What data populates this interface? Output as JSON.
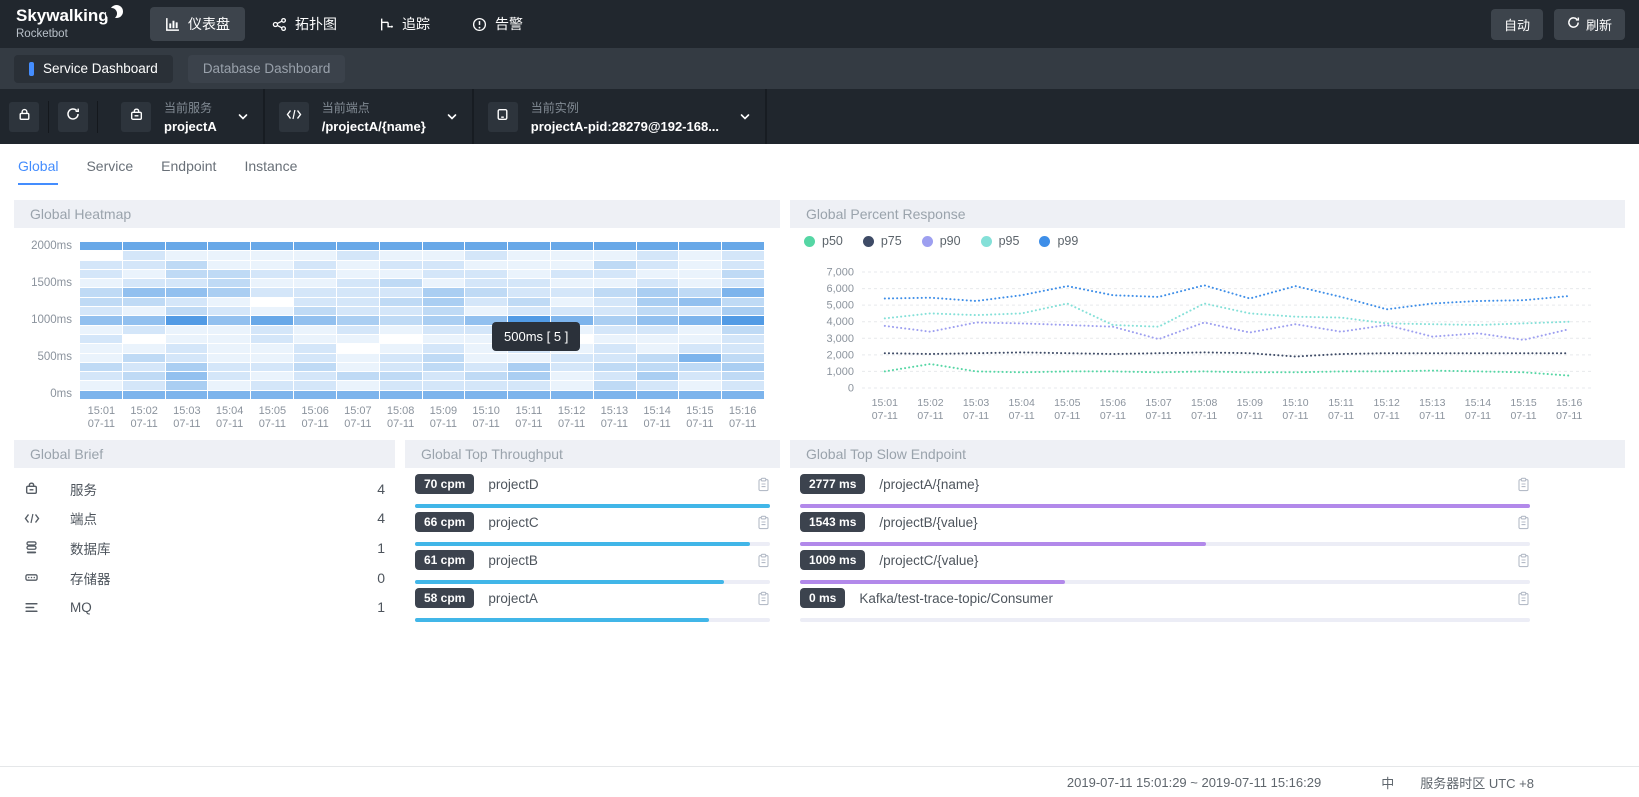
{
  "brand": {
    "name": "Skywalking",
    "subtitle": "Rocketbot"
  },
  "navbar": {
    "items": [
      {
        "label": "仪表盘",
        "icon": "dashboard-icon",
        "active": true
      },
      {
        "label": "拓扑图",
        "icon": "topology-icon",
        "active": false
      },
      {
        "label": "追踪",
        "icon": "trace-icon",
        "active": false
      },
      {
        "label": "告警",
        "icon": "alarm-icon",
        "active": false
      }
    ],
    "auto_label": "自动",
    "refresh_label": "刷新"
  },
  "dashboard_tabs": [
    {
      "label": "Service Dashboard",
      "active": true
    },
    {
      "label": "Database Dashboard",
      "active": false
    }
  ],
  "selectors": {
    "service": {
      "label": "当前服务",
      "value": "projectA"
    },
    "endpoint": {
      "label": "当前端点",
      "value": "/projectA/{name}"
    },
    "instance": {
      "label": "当前实例",
      "value": "projectA-pid:28279@192-168..."
    }
  },
  "page_tabs": [
    {
      "label": "Global",
      "active": true
    },
    {
      "label": "Service",
      "active": false
    },
    {
      "label": "Endpoint",
      "active": false
    },
    {
      "label": "Instance",
      "active": false
    }
  ],
  "panels": {
    "heatmap": {
      "title": "Global Heatmap",
      "tooltip": "500ms [ 5 ]"
    },
    "percent": {
      "title": "Global Percent Response",
      "legend": [
        {
          "label": "p50",
          "color": "#55d6a4"
        },
        {
          "label": "p75",
          "color": "#3e4b66"
        },
        {
          "label": "p90",
          "color": "#9d9ff0"
        },
        {
          "label": "p95",
          "color": "#84e0d8"
        },
        {
          "label": "p99",
          "color": "#3e8ee8"
        }
      ]
    },
    "brief": {
      "title": "Global Brief",
      "items": [
        {
          "icon": "service-icon",
          "label": "服务",
          "value": "4"
        },
        {
          "icon": "endpoint-icon",
          "label": "端点",
          "value": "4"
        },
        {
          "icon": "database-icon",
          "label": "数据库",
          "value": "1"
        },
        {
          "icon": "storage-icon",
          "label": "存储器",
          "value": "0"
        },
        {
          "icon": "mq-icon",
          "label": "MQ",
          "value": "1"
        }
      ]
    },
    "throughput": {
      "title": "Global Top Throughput",
      "unit": "cpm",
      "bar_color": "#41b6e8",
      "items": [
        {
          "value": 70,
          "label": "projectD"
        },
        {
          "value": 66,
          "label": "projectC"
        },
        {
          "value": 61,
          "label": "projectB"
        },
        {
          "value": 58,
          "label": "projectA"
        }
      ]
    },
    "slow": {
      "title": "Global Top Slow Endpoint",
      "unit": "ms",
      "bar_color": "#b289ea",
      "items": [
        {
          "value": 2777,
          "label": "/projectA/{name}"
        },
        {
          "value": 1543,
          "label": "/projectB/{value}"
        },
        {
          "value": 1009,
          "label": "/projectC/{value}"
        },
        {
          "value": 0,
          "label": "Kafka/test-trace-topic/Consumer"
        }
      ]
    }
  },
  "chart_data": [
    {
      "id": "global_heatmap",
      "type": "heatmap",
      "title": "Global Heatmap",
      "x": [
        "15:01",
        "15:02",
        "15:03",
        "15:04",
        "15:05",
        "15:06",
        "15:07",
        "15:08",
        "15:09",
        "15:10",
        "15:11",
        "15:12",
        "15:13",
        "15:14",
        "15:15",
        "15:16"
      ],
      "x_date": "07-11",
      "y_labels": [
        "2000ms",
        "1500ms",
        "1000ms",
        "500ms",
        "0ms"
      ],
      "base_color": "#3d8fe2",
      "intensity_scale": "0 (white) .. 9 (saturated blue)",
      "matrix": [
        [
          7,
          7,
          7,
          7,
          7,
          7,
          7,
          7,
          7,
          7,
          7,
          7,
          7,
          7,
          7,
          7
        ],
        [
          0,
          2,
          1,
          1,
          1,
          1,
          2,
          1,
          1,
          2,
          1,
          1,
          1,
          2,
          1,
          2
        ],
        [
          2,
          2,
          3,
          1,
          1,
          2,
          1,
          2,
          2,
          1,
          1,
          1,
          3,
          2,
          1,
          2
        ],
        [
          2,
          1,
          3,
          3,
          2,
          2,
          1,
          1,
          2,
          2,
          1,
          2,
          2,
          1,
          1,
          3
        ],
        [
          1,
          2,
          2,
          3,
          1,
          1,
          2,
          3,
          1,
          2,
          2,
          1,
          1,
          2,
          1,
          2
        ],
        [
          3,
          5,
          5,
          4,
          2,
          2,
          2,
          2,
          4,
          3,
          2,
          2,
          3,
          4,
          3,
          6
        ],
        [
          3,
          3,
          2,
          1,
          0,
          2,
          2,
          3,
          4,
          2,
          3,
          1,
          2,
          4,
          5,
          3
        ],
        [
          2,
          1,
          3,
          2,
          1,
          3,
          2,
          2,
          3,
          1,
          2,
          2,
          2,
          3,
          2,
          4
        ],
        [
          5,
          5,
          8,
          5,
          7,
          5,
          4,
          3,
          4,
          5,
          8,
          6,
          4,
          5,
          6,
          8
        ],
        [
          1,
          2,
          1,
          1,
          2,
          1,
          2,
          1,
          2,
          2,
          1,
          1,
          2,
          2,
          1,
          3
        ],
        [
          2,
          0,
          1,
          1,
          2,
          1,
          1,
          0,
          1,
          1,
          1,
          0,
          1,
          1,
          1,
          2
        ],
        [
          1,
          1,
          2,
          1,
          1,
          2,
          0,
          1,
          2,
          1,
          2,
          1,
          2,
          1,
          2,
          2
        ],
        [
          1,
          3,
          2,
          1,
          1,
          2,
          1,
          2,
          3,
          1,
          1,
          2,
          2,
          3,
          6,
          3
        ],
        [
          3,
          2,
          4,
          2,
          2,
          3,
          1,
          2,
          3,
          2,
          4,
          2,
          3,
          3,
          3,
          4
        ],
        [
          2,
          3,
          5,
          2,
          1,
          2,
          3,
          3,
          2,
          3,
          4,
          1,
          2,
          4,
          2,
          3
        ],
        [
          1,
          2,
          4,
          1,
          2,
          2,
          1,
          2,
          2,
          2,
          2,
          1,
          3,
          2,
          1,
          2
        ],
        [
          6,
          6,
          6,
          6,
          6,
          6,
          6,
          6,
          6,
          6,
          6,
          6,
          6,
          6,
          6,
          6
        ]
      ],
      "tooltip": "500ms [ 5 ]"
    },
    {
      "id": "percent_response",
      "type": "line",
      "title": "Global Percent Response",
      "style": "dotted",
      "x": [
        "15:01",
        "15:02",
        "15:03",
        "15:04",
        "15:05",
        "15:06",
        "15:07",
        "15:08",
        "15:09",
        "15:10",
        "15:11",
        "15:12",
        "15:13",
        "15:14",
        "15:15",
        "15:16"
      ],
      "x_date": "07-11",
      "ylim": [
        0,
        7000
      ],
      "yticks": [
        "0",
        "1,000",
        "2,000",
        "3,000",
        "4,000",
        "5,000",
        "6,000",
        "7,000"
      ],
      "grid": true,
      "legend_position": "top-left",
      "series": [
        {
          "name": "p50",
          "color": "#55d6a4",
          "values": [
            1000,
            1450,
            1000,
            950,
            1000,
            1000,
            950,
            1000,
            950,
            950,
            1000,
            1000,
            1050,
            1000,
            950,
            750
          ]
        },
        {
          "name": "p75",
          "color": "#3e4b66",
          "values": [
            2100,
            2050,
            2100,
            2150,
            2100,
            2050,
            2100,
            2150,
            2100,
            1900,
            2050,
            2100,
            2100,
            2100,
            2100,
            2100
          ]
        },
        {
          "name": "p90",
          "color": "#9d9ff0",
          "values": [
            3750,
            3400,
            3950,
            3900,
            3800,
            3700,
            2950,
            3950,
            3350,
            3850,
            3400,
            3800,
            3100,
            3300,
            2900,
            3550
          ]
        },
        {
          "name": "p95",
          "color": "#84e0d8",
          "values": [
            4200,
            4500,
            4400,
            4500,
            5100,
            3800,
            3700,
            5100,
            4500,
            4300,
            4250,
            3900,
            3850,
            3800,
            3900,
            4000
          ]
        },
        {
          "name": "p99",
          "color": "#3e8ee8",
          "values": [
            5400,
            5450,
            5250,
            5600,
            6150,
            5600,
            5500,
            6200,
            5400,
            6150,
            5500,
            4750,
            5100,
            5250,
            5300,
            5550
          ]
        }
      ]
    }
  ],
  "footer": {
    "time_range": "2019-07-11 15:01:29 ~ 2019-07-11 15:16:29",
    "lang": "中",
    "timezone_label": "服务器时区 UTC +8"
  }
}
